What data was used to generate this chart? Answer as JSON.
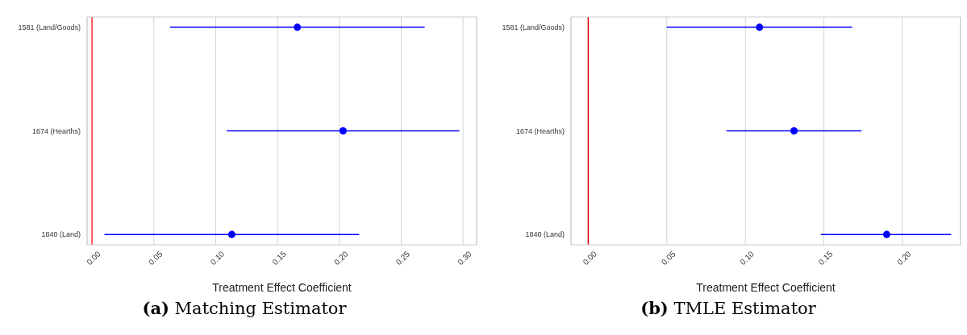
{
  "chart_data": [
    {
      "type": "scatter",
      "title": "(a) Matching Estimator",
      "xlabel": "Treatment Effect Coefficient",
      "categories": [
        "1581 (Land/Goods)",
        "1674 (Hearths)",
        "1840 (Land)"
      ],
      "color": "#0000ff",
      "values": [
        0.166,
        0.203,
        0.113
      ],
      "errors": [
        [
          0.063,
          0.269
        ],
        [
          0.109,
          0.297
        ],
        [
          0.01,
          0.216
        ]
      ],
      "xlim": [
        -0.004,
        0.311
      ],
      "xticks": [
        {
          "value": 0,
          "label": "0.00"
        },
        {
          "value": 0.05,
          "label": "0.05"
        },
        {
          "value": 0.1,
          "label": "0.10"
        },
        {
          "value": 0.15,
          "label": "0.15"
        },
        {
          "value": 0.2,
          "label": "0.20"
        },
        {
          "value": 0.25,
          "label": "0.25"
        },
        {
          "value": 0.3,
          "label": "0.30"
        }
      ],
      "ref_lines": [
        {
          "axis": "x",
          "value": 0,
          "color": "#ff3030"
        }
      ],
      "grid": "x",
      "marker": "circle",
      "orientation": "horizontal"
    },
    {
      "type": "scatter",
      "title": "(b) TMLE Estimator",
      "xlabel": "Treatment Effect Coefficient",
      "categories": [
        "1581 (Land/Goods)",
        "1674 (Hearths)",
        "1840 (Land)"
      ],
      "color": "#0000ff",
      "values": [
        0.109,
        0.131,
        0.19
      ],
      "errors": [
        [
          0.05,
          0.168
        ],
        [
          0.088,
          0.174
        ],
        [
          0.148,
          0.231
        ]
      ],
      "xlim": [
        -0.011,
        0.237
      ],
      "xticks": [
        {
          "value": 0,
          "label": "0.00"
        },
        {
          "value": 0.05,
          "label": "0.05"
        },
        {
          "value": 0.1,
          "label": "0.10"
        },
        {
          "value": 0.15,
          "label": "0.15"
        },
        {
          "value": 0.2,
          "label": "0.20"
        }
      ],
      "ref_lines": [
        {
          "axis": "x",
          "value": 0,
          "color": "#e00000"
        }
      ],
      "grid": "x",
      "marker": "circle",
      "orientation": "horizontal"
    }
  ]
}
